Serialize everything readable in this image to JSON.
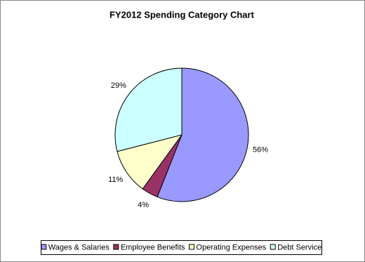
{
  "chart_data": {
    "type": "pie",
    "title": "FY2012 Spending Category Chart",
    "categories": [
      "Wages & Salaries",
      "Employee Benefits",
      "Operating Expenses",
      "Debt Service"
    ],
    "values": [
      56,
      4,
      11,
      29
    ],
    "value_labels": [
      "56%",
      "4%",
      "11%",
      "29%"
    ],
    "colors": [
      "#9999ff",
      "#993366",
      "#ffffcc",
      "#ccffff"
    ],
    "legend": "bottom"
  }
}
